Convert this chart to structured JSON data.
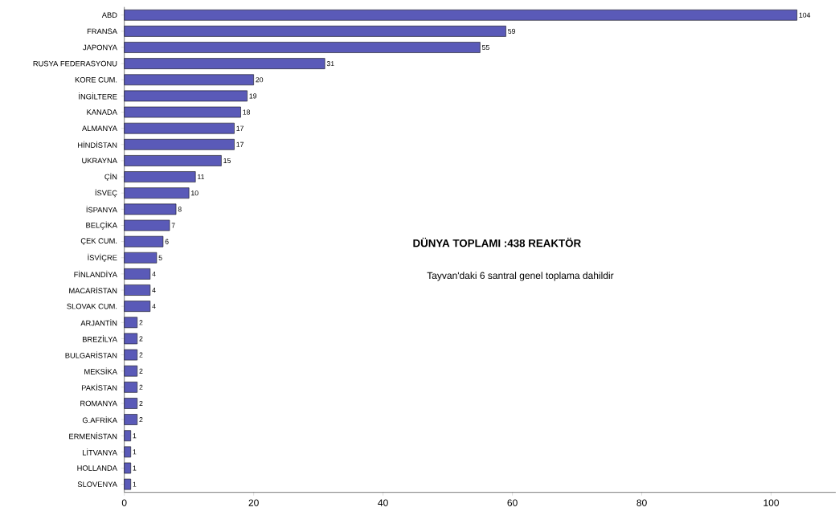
{
  "chart_data": {
    "type": "bar",
    "orientation": "horizontal",
    "categories": [
      "ABD",
      "FRANSA",
      "JAPONYA",
      "RUSYA FEDERASYONU",
      "KORE CUM.",
      "İNGİLTERE",
      "KANADA",
      "ALMANYA",
      "HİNDİSTAN",
      "UKRAYNA",
      "ÇİN",
      "İSVEÇ",
      "İSPANYA",
      "BELÇİKA",
      "ÇEK CUM.",
      "İSVİÇRE",
      "FİNLANDİYA",
      "MACARİSTAN",
      "SLOVAK CUM.",
      "ARJANTİN",
      "BREZİLYA",
      "BULGARİSTAN",
      "MEKSİKA",
      "PAKİSTAN",
      "ROMANYA",
      "G.AFRİKA",
      "ERMENİSTAN",
      "LİTVANYA",
      "HOLLANDA",
      "SLOVENYA"
    ],
    "values": [
      104,
      59,
      55,
      31,
      20,
      19,
      18,
      17,
      17,
      15,
      11,
      10,
      8,
      7,
      6,
      5,
      4,
      4,
      4,
      2,
      2,
      2,
      2,
      2,
      2,
      2,
      1,
      1,
      1,
      1
    ],
    "color": "#5a5ab8",
    "xlim": [
      0,
      110
    ],
    "xticks": [
      0,
      20,
      40,
      60,
      80,
      100
    ],
    "data_labels": true,
    "annotations": [
      "DÜNYA TOPLAMI :438 REAKTÖR",
      "Tayvan'daki 6 santral genel toplama dahildir"
    ]
  }
}
